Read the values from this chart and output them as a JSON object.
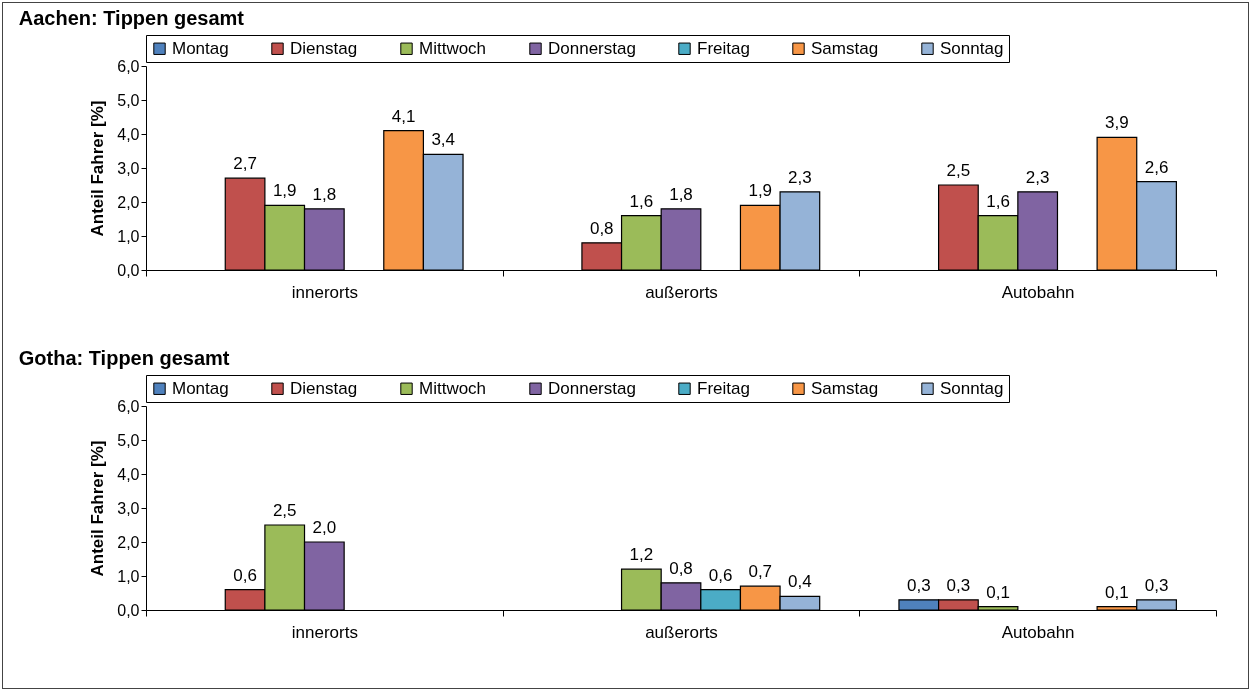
{
  "chart_data": [
    {
      "type": "bar",
      "title": "Aachen: Tippen gesamt",
      "ylabel": "Anteil Fahrer [%]",
      "categories": [
        "innerorts",
        "außerorts",
        "Autobahn"
      ],
      "ylim": [
        0,
        6
      ],
      "yticks": [
        {
          "value": 0,
          "label": "0,0"
        },
        {
          "value": 1,
          "label": "1,0"
        },
        {
          "value": 2,
          "label": "2,0"
        },
        {
          "value": 3,
          "label": "3,0"
        },
        {
          "value": 4,
          "label": "4,0"
        },
        {
          "value": 5,
          "label": "5,0"
        },
        {
          "value": 6,
          "label": "6,0"
        }
      ],
      "legend": "top",
      "grid": false,
      "series": [
        {
          "name": "Montag",
          "color": "#4f81bd",
          "values": [
            null,
            null,
            null
          ],
          "value_labels": [
            null,
            null,
            null
          ]
        },
        {
          "name": "Dienstag",
          "color": "#c0504d",
          "values": [
            2.7,
            0.8,
            2.5
          ],
          "value_labels": [
            "2,7",
            "0,8",
            "2,5"
          ]
        },
        {
          "name": "Mittwoch",
          "color": "#9bbb59",
          "values": [
            1.9,
            1.6,
            1.6
          ],
          "value_labels": [
            "1,9",
            "1,6",
            "1,6"
          ]
        },
        {
          "name": "Donnerstag",
          "color": "#8064a2",
          "values": [
            1.8,
            1.8,
            2.3
          ],
          "value_labels": [
            "1,8",
            "1,8",
            "2,3"
          ]
        },
        {
          "name": "Freitag",
          "color": "#4bacc6",
          "values": [
            null,
            null,
            null
          ],
          "value_labels": [
            null,
            null,
            null
          ]
        },
        {
          "name": "Samstag",
          "color": "#f79646",
          "values": [
            4.1,
            1.9,
            3.9
          ],
          "value_labels": [
            "4,1",
            "1,9",
            "3,9"
          ]
        },
        {
          "name": "Sonntag",
          "color": "#95b3d7",
          "values": [
            3.4,
            2.3,
            2.6
          ],
          "value_labels": [
            "3,4",
            "2,3",
            "2,6"
          ]
        }
      ]
    },
    {
      "type": "bar",
      "title": "Gotha: Tippen gesamt",
      "ylabel": "Anteil Fahrer [%]",
      "categories": [
        "innerorts",
        "außerorts",
        "Autobahn"
      ],
      "ylim": [
        0,
        6
      ],
      "yticks": [
        {
          "value": 0,
          "label": "0,0"
        },
        {
          "value": 1,
          "label": "1,0"
        },
        {
          "value": 2,
          "label": "2,0"
        },
        {
          "value": 3,
          "label": "3,0"
        },
        {
          "value": 4,
          "label": "4,0"
        },
        {
          "value": 5,
          "label": "5,0"
        },
        {
          "value": 6,
          "label": "6,0"
        }
      ],
      "legend": "top",
      "grid": false,
      "series": [
        {
          "name": "Montag",
          "color": "#4f81bd",
          "values": [
            null,
            null,
            0.3
          ],
          "value_labels": [
            null,
            null,
            "0,3"
          ]
        },
        {
          "name": "Dienstag",
          "color": "#c0504d",
          "values": [
            0.6,
            null,
            0.3
          ],
          "value_labels": [
            "0,6",
            null,
            "0,3"
          ]
        },
        {
          "name": "Mittwoch",
          "color": "#9bbb59",
          "values": [
            2.5,
            1.2,
            0.1
          ],
          "value_labels": [
            "2,5",
            "1,2",
            "0,1"
          ]
        },
        {
          "name": "Donnerstag",
          "color": "#8064a2",
          "values": [
            2.0,
            0.8,
            null
          ],
          "value_labels": [
            "2,0",
            "0,8",
            null
          ]
        },
        {
          "name": "Freitag",
          "color": "#4bacc6",
          "values": [
            null,
            0.6,
            null
          ],
          "value_labels": [
            null,
            "0,6",
            null
          ]
        },
        {
          "name": "Samstag",
          "color": "#f79646",
          "values": [
            null,
            0.7,
            0.1
          ],
          "value_labels": [
            null,
            "0,7",
            "0,1"
          ]
        },
        {
          "name": "Sonntag",
          "color": "#95b3d7",
          "values": [
            null,
            0.4,
            0.3
          ],
          "value_labels": [
            null,
            "0,4",
            "0,3"
          ]
        }
      ]
    }
  ]
}
